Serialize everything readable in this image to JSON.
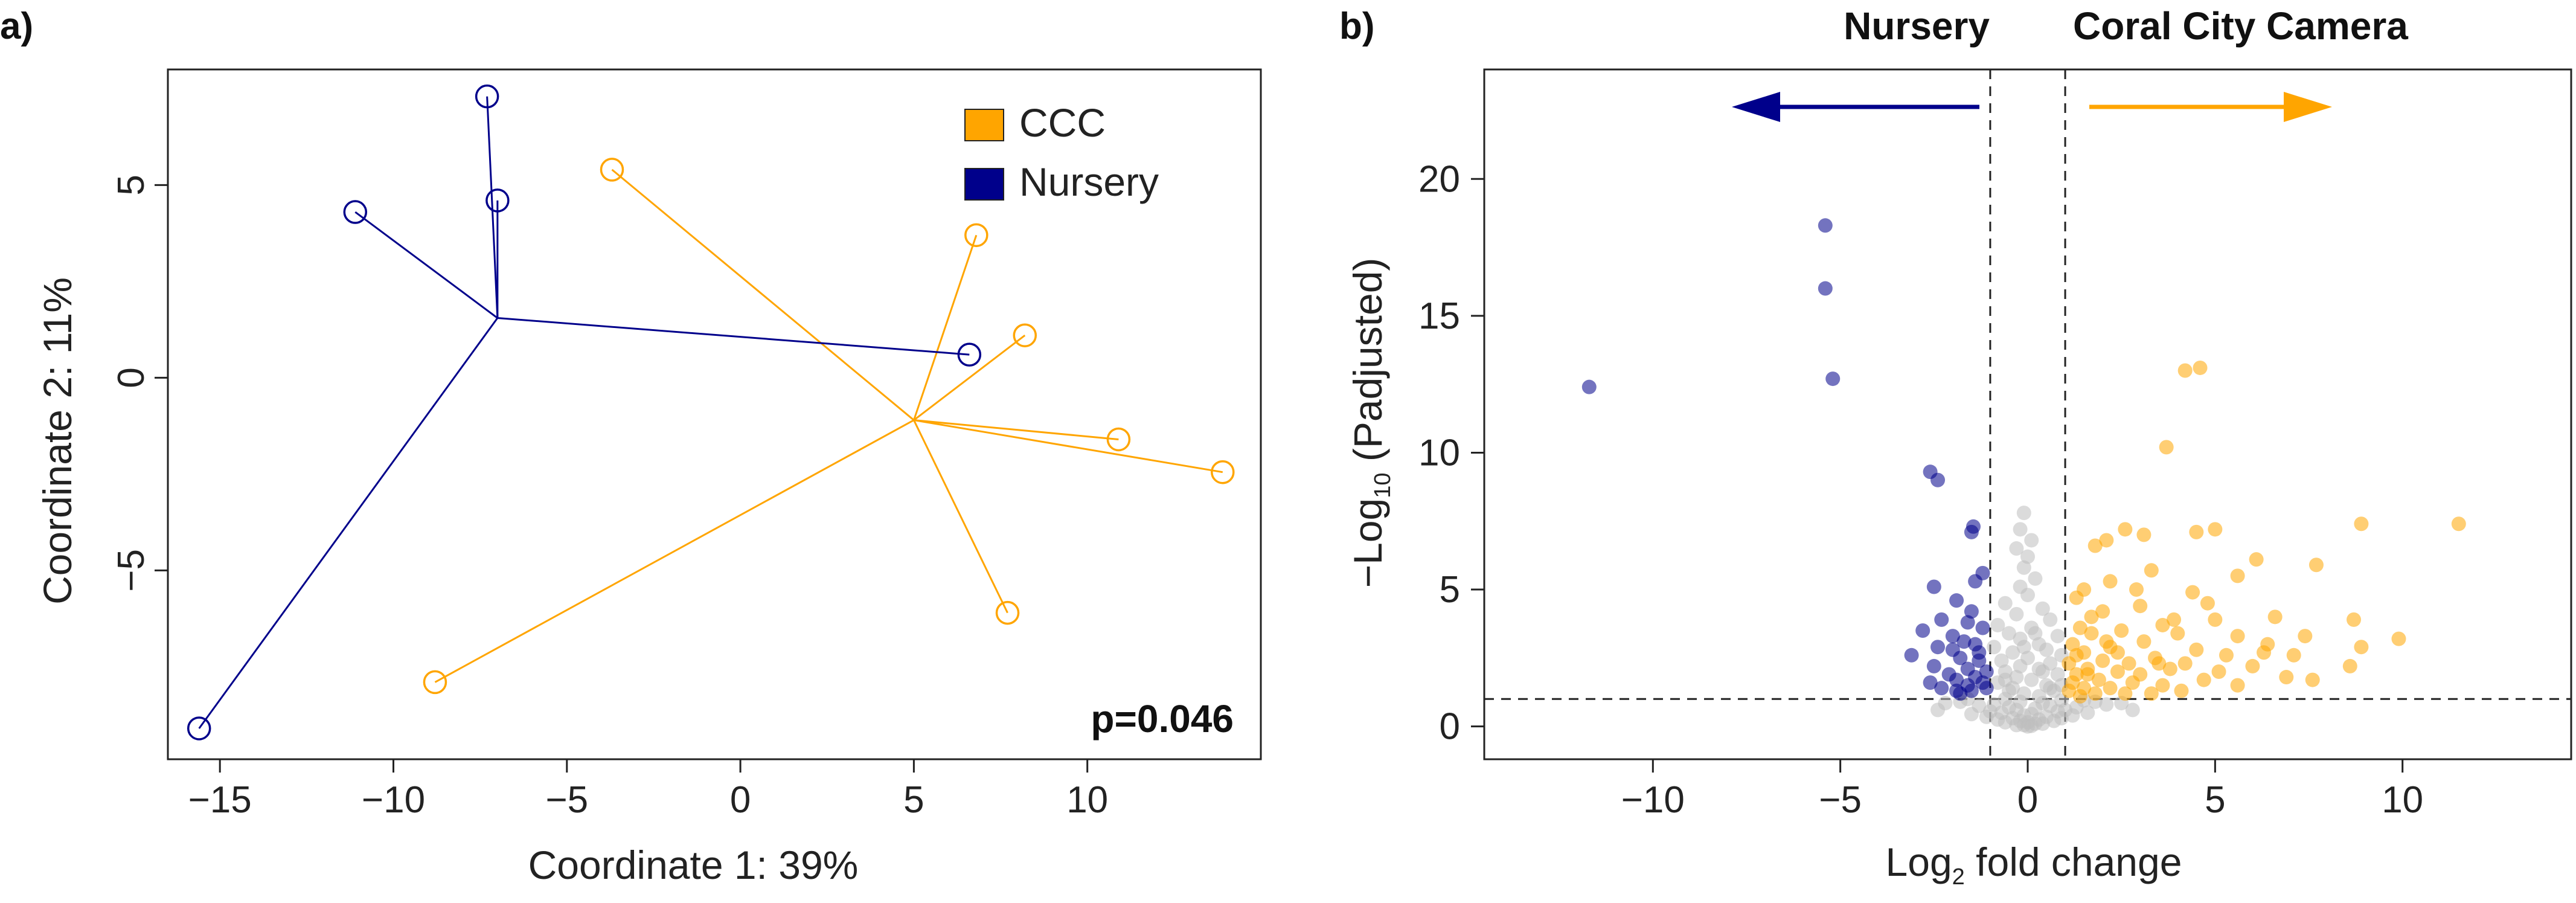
{
  "chart_data": [
    {
      "panel_label": "a)",
      "type": "scatter",
      "title": "",
      "xlabel": "Coordinate 1: 39%",
      "ylabel": "Coordinate 2: 11%",
      "xlim": [
        -16.5,
        15
      ],
      "ylim": [
        -9.9,
        8
      ],
      "xticks": [
        -15,
        -10,
        -5,
        0,
        5,
        10
      ],
      "yticks": [
        -5,
        0,
        5
      ],
      "legend_position": "top-right",
      "annotation": "p=0.046",
      "series": [
        {
          "name": "CCC",
          "color": "#FFA500",
          "centroid": [
            5.0,
            -1.1
          ],
          "points": [
            [
              -3.7,
              5.4
            ],
            [
              6.8,
              3.7
            ],
            [
              8.2,
              1.1
            ],
            [
              10.9,
              -1.6
            ],
            [
              13.9,
              -2.45
            ],
            [
              7.7,
              -6.1
            ],
            [
              -8.8,
              -7.9
            ]
          ]
        },
        {
          "name": "Nursery",
          "color": "#00008B",
          "centroid": [
            -7.0,
            1.55
          ],
          "points": [
            [
              -7.3,
              7.3
            ],
            [
              -7.0,
              4.6
            ],
            [
              -11.1,
              4.3
            ],
            [
              6.6,
              0.6
            ],
            [
              -15.6,
              -9.1
            ]
          ]
        }
      ]
    },
    {
      "panel_label": "b)",
      "type": "scatter",
      "title": "",
      "xlabel": "Log2 fold change",
      "xlabel_parts": [
        "Log",
        "2",
        " fold change"
      ],
      "ylabel": "−Log10 (Padjusted)",
      "ylabel_parts": [
        "−Log",
        "10",
        " (Padjusted)"
      ],
      "xlim": [
        -14.5,
        14.5
      ],
      "ylim": [
        -1.2,
        24.0
      ],
      "xticks": [
        -10,
        -5,
        0,
        5,
        10
      ],
      "yticks": [
        0,
        5,
        10,
        15,
        20
      ],
      "vlines": [
        -1,
        1
      ],
      "hline": 1,
      "left_header": "Nursery",
      "right_header": "Coral City Camera",
      "colors": {
        "nursery": "#00008B",
        "ccc": "#FFA500",
        "ns": "#BEBEBE"
      },
      "nursery_points": [
        [
          -11.7,
          12.4
        ],
        [
          -5.4,
          18.3
        ],
        [
          -5.4,
          16.0
        ],
        [
          -5.2,
          12.7
        ],
        [
          -2.6,
          9.3
        ],
        [
          -2.4,
          9.0
        ],
        [
          -1.5,
          7.1
        ],
        [
          -1.45,
          7.3
        ],
        [
          -2.5,
          5.1
        ],
        [
          -1.4,
          5.3
        ],
        [
          -1.2,
          5.6
        ],
        [
          -1.9,
          4.6
        ],
        [
          -2.3,
          3.9
        ],
        [
          -1.6,
          3.8
        ],
        [
          -1.2,
          3.6
        ],
        [
          -2.8,
          3.5
        ],
        [
          -1.4,
          3.0
        ],
        [
          -2.0,
          2.8
        ],
        [
          -3.1,
          2.6
        ],
        [
          -1.8,
          2.5
        ],
        [
          -1.3,
          2.4
        ],
        [
          -2.5,
          2.2
        ],
        [
          -1.6,
          2.1
        ],
        [
          -1.1,
          2.0
        ],
        [
          -2.1,
          1.9
        ],
        [
          -1.4,
          1.8
        ],
        [
          -1.9,
          1.7
        ],
        [
          -2.6,
          1.6
        ],
        [
          -1.2,
          1.6
        ],
        [
          -1.6,
          1.5
        ],
        [
          -2.3,
          1.4
        ],
        [
          -1.1,
          1.4
        ],
        [
          -1.5,
          1.3
        ],
        [
          -1.8,
          1.2
        ],
        [
          -2.0,
          3.3
        ],
        [
          -1.7,
          3.1
        ],
        [
          -1.3,
          2.7
        ],
        [
          -2.4,
          2.9
        ],
        [
          -1.5,
          4.2
        ],
        [
          -1.9,
          1.3
        ]
      ],
      "ccc_points": [
        [
          11.5,
          7.4
        ],
        [
          8.9,
          7.4
        ],
        [
          4.2,
          13.0
        ],
        [
          4.6,
          13.1
        ],
        [
          3.7,
          10.2
        ],
        [
          5.0,
          7.2
        ],
        [
          4.5,
          7.1
        ],
        [
          2.6,
          7.2
        ],
        [
          3.1,
          7.0
        ],
        [
          2.1,
          6.8
        ],
        [
          1.8,
          6.6
        ],
        [
          6.1,
          6.1
        ],
        [
          7.7,
          5.9
        ],
        [
          5.6,
          5.5
        ],
        [
          3.3,
          5.7
        ],
        [
          2.2,
          5.3
        ],
        [
          1.5,
          5.0
        ],
        [
          4.4,
          4.9
        ],
        [
          1.3,
          4.7
        ],
        [
          3.0,
          4.4
        ],
        [
          2.0,
          4.2
        ],
        [
          6.6,
          4.0
        ],
        [
          5.0,
          3.9
        ],
        [
          8.7,
          3.9
        ],
        [
          3.6,
          3.7
        ],
        [
          1.4,
          3.6
        ],
        [
          2.5,
          3.5
        ],
        [
          1.7,
          3.4
        ],
        [
          4.0,
          3.4
        ],
        [
          5.6,
          3.3
        ],
        [
          7.4,
          3.3
        ],
        [
          9.9,
          3.2
        ],
        [
          3.1,
          3.1
        ],
        [
          1.2,
          3.0
        ],
        [
          6.4,
          3.0
        ],
        [
          8.9,
          2.9
        ],
        [
          2.2,
          2.9
        ],
        [
          4.5,
          2.8
        ],
        [
          1.5,
          2.7
        ],
        [
          5.3,
          2.6
        ],
        [
          3.4,
          2.5
        ],
        [
          7.1,
          2.6
        ],
        [
          2.0,
          2.4
        ],
        [
          1.1,
          2.3
        ],
        [
          2.7,
          2.3
        ],
        [
          4.2,
          2.3
        ],
        [
          6.0,
          2.2
        ],
        [
          8.6,
          2.2
        ],
        [
          1.6,
          2.1
        ],
        [
          3.8,
          2.1
        ],
        [
          5.1,
          2.0
        ],
        [
          2.4,
          2.0
        ],
        [
          1.3,
          1.9
        ],
        [
          3.0,
          1.9
        ],
        [
          6.9,
          1.8
        ],
        [
          7.6,
          1.7
        ],
        [
          4.7,
          1.7
        ],
        [
          1.9,
          1.7
        ],
        [
          2.8,
          1.6
        ],
        [
          1.2,
          1.6
        ],
        [
          3.6,
          1.5
        ],
        [
          5.6,
          1.5
        ],
        [
          2.2,
          1.4
        ],
        [
          1.5,
          1.4
        ],
        [
          4.1,
          1.3
        ],
        [
          1.1,
          1.3
        ],
        [
          2.6,
          1.2
        ],
        [
          1.8,
          1.2
        ],
        [
          3.3,
          1.2
        ],
        [
          1.4,
          1.1
        ],
        [
          6.3,
          2.7
        ],
        [
          3.9,
          3.9
        ],
        [
          2.9,
          5.0
        ],
        [
          1.7,
          4.0
        ],
        [
          4.8,
          4.5
        ],
        [
          1.3,
          2.6
        ],
        [
          2.1,
          3.1
        ],
        [
          1.6,
          1.9
        ],
        [
          2.4,
          2.7
        ],
        [
          3.5,
          2.3
        ]
      ],
      "ns_points": [
        [
          -0.1,
          7.8
        ],
        [
          -0.2,
          7.2
        ],
        [
          0.1,
          6.8
        ],
        [
          -0.3,
          6.5
        ],
        [
          0.0,
          6.2
        ],
        [
          -0.1,
          5.8
        ],
        [
          0.2,
          5.4
        ],
        [
          -0.2,
          5.1
        ],
        [
          0.0,
          4.8
        ],
        [
          -0.6,
          4.5
        ],
        [
          0.4,
          4.3
        ],
        [
          -0.3,
          4.1
        ],
        [
          0.6,
          3.9
        ],
        [
          -0.8,
          3.7
        ],
        [
          0.1,
          3.6
        ],
        [
          -0.5,
          3.4
        ],
        [
          0.8,
          3.3
        ],
        [
          -0.2,
          3.2
        ],
        [
          0.3,
          3.0
        ],
        [
          -0.9,
          2.9
        ],
        [
          0.5,
          2.8
        ],
        [
          -0.4,
          2.7
        ],
        [
          0.9,
          2.6
        ],
        [
          0.0,
          2.5
        ],
        [
          -0.7,
          2.4
        ],
        [
          0.6,
          2.3
        ],
        [
          -0.2,
          2.2
        ],
        [
          0.3,
          2.1
        ],
        [
          -0.6,
          2.0
        ],
        [
          0.8,
          1.9
        ],
        [
          -0.3,
          1.8
        ],
        [
          0.1,
          1.7
        ],
        [
          -0.8,
          1.6
        ],
        [
          0.5,
          1.5
        ],
        [
          -0.4,
          1.4
        ],
        [
          0.7,
          1.3
        ],
        [
          -0.1,
          1.2
        ],
        [
          0.3,
          1.1
        ],
        [
          -0.6,
          1.0
        ],
        [
          0.9,
          0.95
        ],
        [
          -0.2,
          0.9
        ],
        [
          0.4,
          0.85
        ],
        [
          -0.9,
          0.8
        ],
        [
          0.6,
          0.75
        ],
        [
          -0.5,
          0.7
        ],
        [
          0.2,
          0.65
        ],
        [
          -0.3,
          0.6
        ],
        [
          0.8,
          0.55
        ],
        [
          -0.7,
          0.5
        ],
        [
          0.1,
          0.45
        ],
        [
          -0.1,
          0.4
        ],
        [
          0.5,
          0.35
        ],
        [
          -0.4,
          0.3
        ],
        [
          0.3,
          0.25
        ],
        [
          -0.2,
          0.2
        ],
        [
          0.0,
          0.15
        ],
        [
          0.2,
          0.1
        ],
        [
          -0.1,
          0.05
        ],
        [
          0.1,
          0.02
        ],
        [
          0.0,
          0.0
        ],
        [
          -1.6,
          1.0
        ],
        [
          -1.8,
          0.9
        ],
        [
          -2.2,
          0.85
        ],
        [
          1.5,
          0.95
        ],
        [
          1.8,
          0.9
        ],
        [
          2.1,
          0.8
        ],
        [
          2.5,
          0.85
        ],
        [
          1.3,
          0.7
        ],
        [
          -1.3,
          0.75
        ],
        [
          2.8,
          0.6
        ],
        [
          -2.4,
          0.6
        ],
        [
          1.6,
          0.5
        ],
        [
          -1.5,
          0.45
        ],
        [
          1.2,
          0.4
        ],
        [
          -1.1,
          0.35
        ],
        [
          0.9,
          0.3
        ],
        [
          -0.8,
          0.25
        ],
        [
          0.7,
          0.2
        ],
        [
          -0.6,
          0.15
        ],
        [
          0.4,
          0.1
        ],
        [
          -0.3,
          0.05
        ],
        [
          0.6,
          1.4
        ],
        [
          -0.5,
          1.3
        ],
        [
          0.9,
          1.5
        ],
        [
          1.0,
          0.6
        ],
        [
          -1.0,
          0.55
        ],
        [
          0.2,
          3.4
        ],
        [
          -0.1,
          2.9
        ],
        [
          0.4,
          2.0
        ],
        [
          -0.6,
          1.7
        ]
      ]
    }
  ]
}
